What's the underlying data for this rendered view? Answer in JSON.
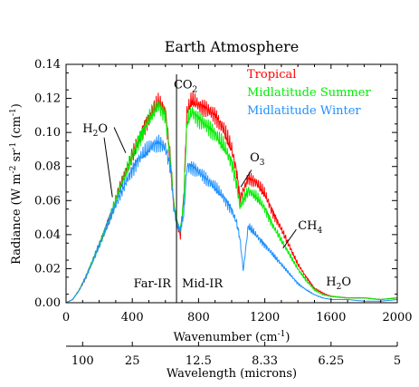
{
  "chart_data": {
    "type": "line",
    "title": "Earth Atmosphere",
    "xlabel": "Wavenumber (cm",
    "xlabel_sup": "-1",
    "xlabel_tail": ")",
    "ylabel": "Radiance (W m",
    "ylabel_sup1": "-2",
    "ylabel_mid1": " sr",
    "ylabel_sup2": "-1",
    "ylabel_mid2": " (cm",
    "ylabel_sup3": "-1",
    "ylabel_tail": ")",
    "xlim": [
      0,
      2000
    ],
    "ylim": [
      0,
      0.14
    ],
    "x_ticks": [
      0,
      400,
      800,
      1200,
      1600,
      2000
    ],
    "y_ticks": [
      "0.00",
      "0.02",
      "0.04",
      "0.06",
      "0.08",
      "0.10",
      "0.12",
      "0.14"
    ],
    "secondary_axis": {
      "label": "Wavelength (microns)",
      "ticks": [
        {
          "label": "100",
          "wavenumber": 100
        },
        {
          "label": "25",
          "wavenumber": 400
        },
        {
          "label": "12.5",
          "wavenumber": 800
        },
        {
          "label": "8.33",
          "wavenumber": 1200
        },
        {
          "label": "6.25",
          "wavenumber": 1600
        },
        {
          "label": "5",
          "wavenumber": 2000
        }
      ]
    },
    "divider_wavenumber": 667,
    "region_labels": [
      "Far-IR",
      "Mid-IR"
    ],
    "annotations": [
      {
        "text": "CO",
        "sub": "2",
        "x": 650,
        "y": 0.126
      },
      {
        "text": "H",
        "sub": "2",
        "tail": "O",
        "x": 100,
        "y": 0.1
      },
      {
        "text": "O",
        "sub": "3",
        "x": 1110,
        "y": 0.083
      },
      {
        "text": "CH",
        "sub": "4",
        "x": 1400,
        "y": 0.043
      },
      {
        "text": "H",
        "sub": "2",
        "tail": "O",
        "x": 1570,
        "y": 0.01
      }
    ],
    "series": [
      {
        "name": "Tropical",
        "color": "#ff0000",
        "x": [
          0,
          40,
          80,
          120,
          160,
          200,
          240,
          280,
          320,
          360,
          400,
          440,
          480,
          520,
          560,
          600,
          630,
          650,
          670,
          690,
          710,
          730,
          760,
          800,
          850,
          900,
          950,
          1000,
          1030,
          1050,
          1070,
          1100,
          1150,
          1200,
          1250,
          1300,
          1350,
          1400,
          1450,
          1500,
          1550,
          1600,
          1700,
          1800,
          1900,
          2000
        ],
        "values": [
          0.0,
          0.002,
          0.008,
          0.016,
          0.026,
          0.036,
          0.047,
          0.058,
          0.07,
          0.081,
          0.092,
          0.102,
          0.111,
          0.118,
          0.124,
          0.118,
          0.09,
          0.062,
          0.05,
          0.042,
          0.065,
          0.118,
          0.125,
          0.122,
          0.12,
          0.116,
          0.108,
          0.096,
          0.082,
          0.065,
          0.07,
          0.078,
          0.075,
          0.068,
          0.056,
          0.046,
          0.035,
          0.024,
          0.016,
          0.009,
          0.006,
          0.004,
          0.003,
          0.003,
          0.002,
          0.003
        ]
      },
      {
        "name": "Midlatitude Summer",
        "color": "#00ee00",
        "x": [
          0,
          40,
          80,
          120,
          160,
          200,
          240,
          280,
          320,
          360,
          400,
          440,
          480,
          520,
          560,
          600,
          630,
          650,
          670,
          690,
          710,
          730,
          760,
          800,
          850,
          900,
          950,
          1000,
          1030,
          1050,
          1070,
          1100,
          1150,
          1200,
          1250,
          1300,
          1350,
          1400,
          1450,
          1500,
          1550,
          1600,
          1700,
          1800,
          1900,
          2000
        ],
        "values": [
          0.0,
          0.002,
          0.008,
          0.016,
          0.026,
          0.036,
          0.047,
          0.058,
          0.07,
          0.081,
          0.092,
          0.102,
          0.11,
          0.117,
          0.122,
          0.116,
          0.09,
          0.062,
          0.05,
          0.045,
          0.063,
          0.112,
          0.118,
          0.114,
          0.11,
          0.105,
          0.098,
          0.088,
          0.074,
          0.06,
          0.064,
          0.07,
          0.066,
          0.059,
          0.048,
          0.039,
          0.03,
          0.021,
          0.014,
          0.008,
          0.005,
          0.004,
          0.003,
          0.003,
          0.002,
          0.003
        ]
      },
      {
        "name": "Midlatitude Winter",
        "color": "#1e90ff",
        "x": [
          0,
          40,
          80,
          120,
          160,
          200,
          240,
          280,
          320,
          360,
          400,
          440,
          480,
          520,
          560,
          600,
          630,
          650,
          670,
          690,
          710,
          730,
          760,
          800,
          850,
          900,
          950,
          1000,
          1030,
          1050,
          1070,
          1100,
          1150,
          1200,
          1250,
          1300,
          1350,
          1400,
          1450,
          1500,
          1550,
          1600,
          1700,
          1800,
          1900,
          2000
        ],
        "values": [
          0.0,
          0.002,
          0.008,
          0.016,
          0.026,
          0.036,
          0.046,
          0.056,
          0.066,
          0.075,
          0.083,
          0.09,
          0.094,
          0.098,
          0.1,
          0.097,
          0.085,
          0.06,
          0.048,
          0.045,
          0.055,
          0.085,
          0.085,
          0.082,
          0.077,
          0.072,
          0.066,
          0.058,
          0.05,
          0.04,
          0.02,
          0.048,
          0.042,
          0.036,
          0.03,
          0.024,
          0.018,
          0.012,
          0.008,
          0.005,
          0.003,
          0.002,
          0.002,
          0.001,
          0.001,
          0.002
        ]
      }
    ]
  }
}
